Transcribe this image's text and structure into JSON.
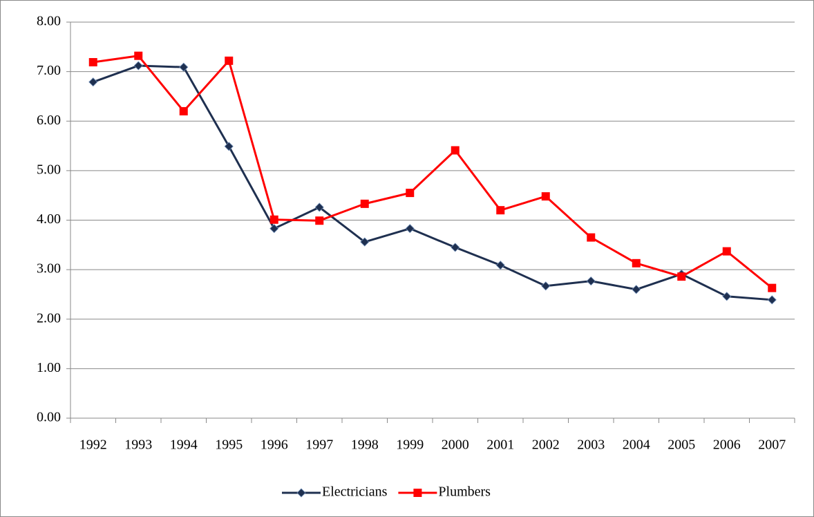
{
  "chart_data": {
    "type": "line",
    "categories": [
      "1992",
      "1993",
      "1994",
      "1995",
      "1996",
      "1997",
      "1998",
      "1999",
      "2000",
      "2001",
      "2002",
      "2003",
      "2004",
      "2005",
      "2006",
      "2007"
    ],
    "series": [
      {
        "name": "Electricians",
        "color": "#1f3050",
        "marker": "diamond",
        "values": [
          6.79,
          7.12,
          7.09,
          5.49,
          3.83,
          4.26,
          3.56,
          3.83,
          3.45,
          3.09,
          2.67,
          2.77,
          2.6,
          2.91,
          2.46,
          2.39
        ]
      },
      {
        "name": "Plumbers",
        "color": "#ff0000",
        "marker": "square",
        "values": [
          7.19,
          7.32,
          6.2,
          7.22,
          4.01,
          3.99,
          4.33,
          4.55,
          5.41,
          4.2,
          4.48,
          3.65,
          3.13,
          2.86,
          3.37,
          2.63
        ]
      }
    ],
    "ylim": [
      0,
      8
    ],
    "yticks": [
      {
        "value": 0,
        "label": "0.00"
      },
      {
        "value": 1,
        "label": "1.00"
      },
      {
        "value": 2,
        "label": "2.00"
      },
      {
        "value": 3,
        "label": "3.00"
      },
      {
        "value": 4,
        "label": "4.00"
      },
      {
        "value": 5,
        "label": "5.00"
      },
      {
        "value": 6,
        "label": "6.00"
      },
      {
        "value": 7,
        "label": "7.00"
      },
      {
        "value": 8,
        "label": "8.00"
      }
    ],
    "grid": true,
    "legend": "bottom"
  }
}
